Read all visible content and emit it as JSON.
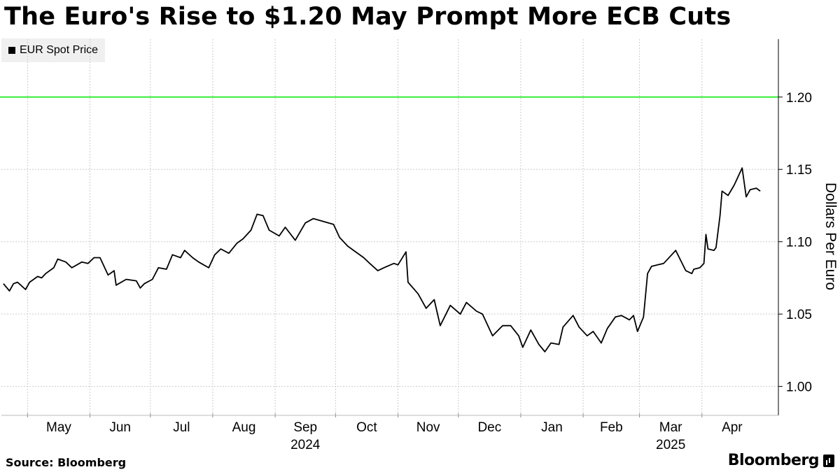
{
  "title": "The Euro's Rise to $1.20 May Prompt More ECB Cuts",
  "source": "Source:  Bloomberg",
  "brand": "Bloomberg",
  "colors": {
    "line": "#000000",
    "reference": "#33ee33",
    "grid": "#cccccc"
  },
  "chart_data": {
    "type": "line",
    "title": "The Euro's Rise to $1.20 May Prompt More ECB Cuts",
    "xlabel": "",
    "ylabel": "Dollars Per Euro",
    "ylim": [
      0.98,
      1.24
    ],
    "yticks": [
      1.0,
      1.05,
      1.1,
      1.15,
      1.2
    ],
    "ytick_labels": [
      "1.00",
      "1.05",
      "1.10",
      "1.15",
      "1.20"
    ],
    "grid": true,
    "legend_position": "top-left",
    "reference_line": {
      "y": 1.2,
      "color": "#33ee33"
    },
    "month_ticks": [
      {
        "label": "May",
        "date": "2024-05-01"
      },
      {
        "label": "Jun",
        "date": "2024-06-01"
      },
      {
        "label": "Jul",
        "date": "2024-07-01"
      },
      {
        "label": "Aug",
        "date": "2024-08-01"
      },
      {
        "label": "Sep",
        "date": "2024-09-01"
      },
      {
        "label": "Oct",
        "date": "2024-10-01"
      },
      {
        "label": "Nov",
        "date": "2024-11-01"
      },
      {
        "label": "Dec",
        "date": "2024-12-01"
      },
      {
        "label": "Jan",
        "date": "2025-01-01"
      },
      {
        "label": "Feb",
        "date": "2025-02-01"
      },
      {
        "label": "Mar",
        "date": "2025-03-01"
      },
      {
        "label": "Apr",
        "date": "2025-04-01"
      }
    ],
    "year_labels": [
      {
        "label": "2024",
        "date": "2024-09-01"
      },
      {
        "label": "2025",
        "date": "2025-03-01"
      }
    ],
    "series": [
      {
        "name": "EUR Spot Price",
        "points": [
          [
            "2024-04-19",
            1.071
          ],
          [
            "2024-04-22",
            1.066
          ],
          [
            "2024-04-24",
            1.071
          ],
          [
            "2024-04-26",
            1.072
          ],
          [
            "2024-04-30",
            1.067
          ],
          [
            "2024-05-02",
            1.072
          ],
          [
            "2024-05-06",
            1.076
          ],
          [
            "2024-05-08",
            1.075
          ],
          [
            "2024-05-10",
            1.078
          ],
          [
            "2024-05-14",
            1.082
          ],
          [
            "2024-05-16",
            1.088
          ],
          [
            "2024-05-20",
            1.086
          ],
          [
            "2024-05-23",
            1.082
          ],
          [
            "2024-05-28",
            1.086
          ],
          [
            "2024-05-31",
            1.085
          ],
          [
            "2024-06-03",
            1.089
          ],
          [
            "2024-06-06",
            1.089
          ],
          [
            "2024-06-10",
            1.077
          ],
          [
            "2024-06-13",
            1.08
          ],
          [
            "2024-06-14",
            1.07
          ],
          [
            "2024-06-19",
            1.074
          ],
          [
            "2024-06-24",
            1.073
          ],
          [
            "2024-06-26",
            1.068
          ],
          [
            "2024-06-28",
            1.071
          ],
          [
            "2024-07-02",
            1.074
          ],
          [
            "2024-07-05",
            1.082
          ],
          [
            "2024-07-09",
            1.081
          ],
          [
            "2024-07-12",
            1.091
          ],
          [
            "2024-07-16",
            1.089
          ],
          [
            "2024-07-18",
            1.094
          ],
          [
            "2024-07-22",
            1.089
          ],
          [
            "2024-07-25",
            1.086
          ],
          [
            "2024-07-30",
            1.082
          ],
          [
            "2024-08-02",
            1.091
          ],
          [
            "2024-08-05",
            1.095
          ],
          [
            "2024-08-09",
            1.092
          ],
          [
            "2024-08-13",
            1.099
          ],
          [
            "2024-08-16",
            1.102
          ],
          [
            "2024-08-20",
            1.108
          ],
          [
            "2024-08-23",
            1.119
          ],
          [
            "2024-08-26",
            1.118
          ],
          [
            "2024-08-29",
            1.108
          ],
          [
            "2024-09-03",
            1.104
          ],
          [
            "2024-09-06",
            1.11
          ],
          [
            "2024-09-11",
            1.101
          ],
          [
            "2024-09-16",
            1.113
          ],
          [
            "2024-09-20",
            1.116
          ],
          [
            "2024-09-25",
            1.114
          ],
          [
            "2024-09-30",
            1.112
          ],
          [
            "2024-10-03",
            1.103
          ],
          [
            "2024-10-07",
            1.097
          ],
          [
            "2024-10-10",
            1.094
          ],
          [
            "2024-10-15",
            1.089
          ],
          [
            "2024-10-18",
            1.085
          ],
          [
            "2024-10-22",
            1.08
          ],
          [
            "2024-10-25",
            1.082
          ],
          [
            "2024-10-30",
            1.085
          ],
          [
            "2024-11-01",
            1.084
          ],
          [
            "2024-11-05",
            1.093
          ],
          [
            "2024-11-06",
            1.072
          ],
          [
            "2024-11-11",
            1.064
          ],
          [
            "2024-11-15",
            1.054
          ],
          [
            "2024-11-19",
            1.06
          ],
          [
            "2024-11-22",
            1.042
          ],
          [
            "2024-11-27",
            1.056
          ],
          [
            "2024-12-02",
            1.05
          ],
          [
            "2024-12-05",
            1.058
          ],
          [
            "2024-12-10",
            1.052
          ],
          [
            "2024-12-13",
            1.05
          ],
          [
            "2024-12-18",
            1.035
          ],
          [
            "2024-12-23",
            1.042
          ],
          [
            "2024-12-27",
            1.042
          ],
          [
            "2024-12-31",
            1.035
          ],
          [
            "2025-01-02",
            1.027
          ],
          [
            "2025-01-06",
            1.039
          ],
          [
            "2025-01-10",
            1.029
          ],
          [
            "2025-01-13",
            1.024
          ],
          [
            "2025-01-16",
            1.03
          ],
          [
            "2025-01-20",
            1.029
          ],
          [
            "2025-01-22",
            1.041
          ],
          [
            "2025-01-27",
            1.049
          ],
          [
            "2025-01-30",
            1.041
          ],
          [
            "2025-02-03",
            1.035
          ],
          [
            "2025-02-06",
            1.038
          ],
          [
            "2025-02-10",
            1.03
          ],
          [
            "2025-02-13",
            1.04
          ],
          [
            "2025-02-17",
            1.048
          ],
          [
            "2025-02-20",
            1.049
          ],
          [
            "2025-02-24",
            1.046
          ],
          [
            "2025-02-26",
            1.049
          ],
          [
            "2025-02-28",
            1.038
          ],
          [
            "2025-03-03",
            1.048
          ],
          [
            "2025-03-05",
            1.078
          ],
          [
            "2025-03-07",
            1.083
          ],
          [
            "2025-03-10",
            1.084
          ],
          [
            "2025-03-13",
            1.085
          ],
          [
            "2025-03-17",
            1.091
          ],
          [
            "2025-03-19",
            1.094
          ],
          [
            "2025-03-24",
            1.08
          ],
          [
            "2025-03-27",
            1.078
          ],
          [
            "2025-03-28",
            1.081
          ],
          [
            "2025-03-31",
            1.082
          ],
          [
            "2025-04-02",
            1.085
          ],
          [
            "2025-04-03",
            1.105
          ],
          [
            "2025-04-04",
            1.095
          ],
          [
            "2025-04-07",
            1.094
          ],
          [
            "2025-04-08",
            1.096
          ],
          [
            "2025-04-10",
            1.118
          ],
          [
            "2025-04-11",
            1.135
          ],
          [
            "2025-04-14",
            1.132
          ],
          [
            "2025-04-17",
            1.139
          ],
          [
            "2025-04-21",
            1.151
          ],
          [
            "2025-04-23",
            1.131
          ],
          [
            "2025-04-25",
            1.136
          ],
          [
            "2025-04-28",
            1.137
          ],
          [
            "2025-04-30",
            1.135
          ]
        ]
      }
    ]
  }
}
